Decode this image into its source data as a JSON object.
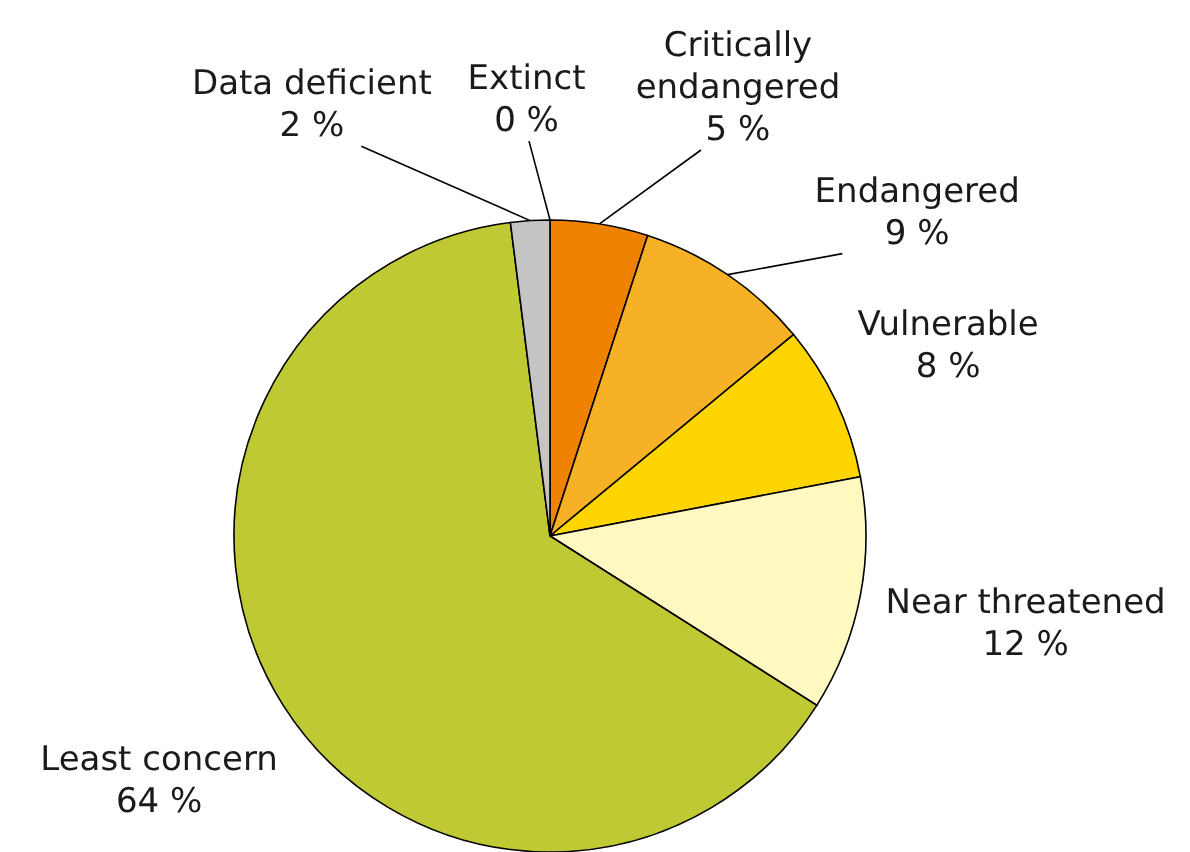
{
  "chart_data": {
    "type": "pie",
    "categories": [
      "Extinct",
      "Critically endangered",
      "Endangered",
      "Vulnerable",
      "Near threatened",
      "Least concern",
      "Data deficient"
    ],
    "values": [
      0,
      5,
      9,
      8,
      12,
      64,
      2
    ],
    "colors": [
      "#000000",
      "#ef8200",
      "#f6b126",
      "#ffd500",
      "#fff8c0",
      "#bfc933",
      "#c4c4c4"
    ],
    "value_labels": [
      "0 %",
      "5 %",
      "9 %",
      "8 %",
      "12 %",
      "64 %",
      "2 %"
    ]
  }
}
